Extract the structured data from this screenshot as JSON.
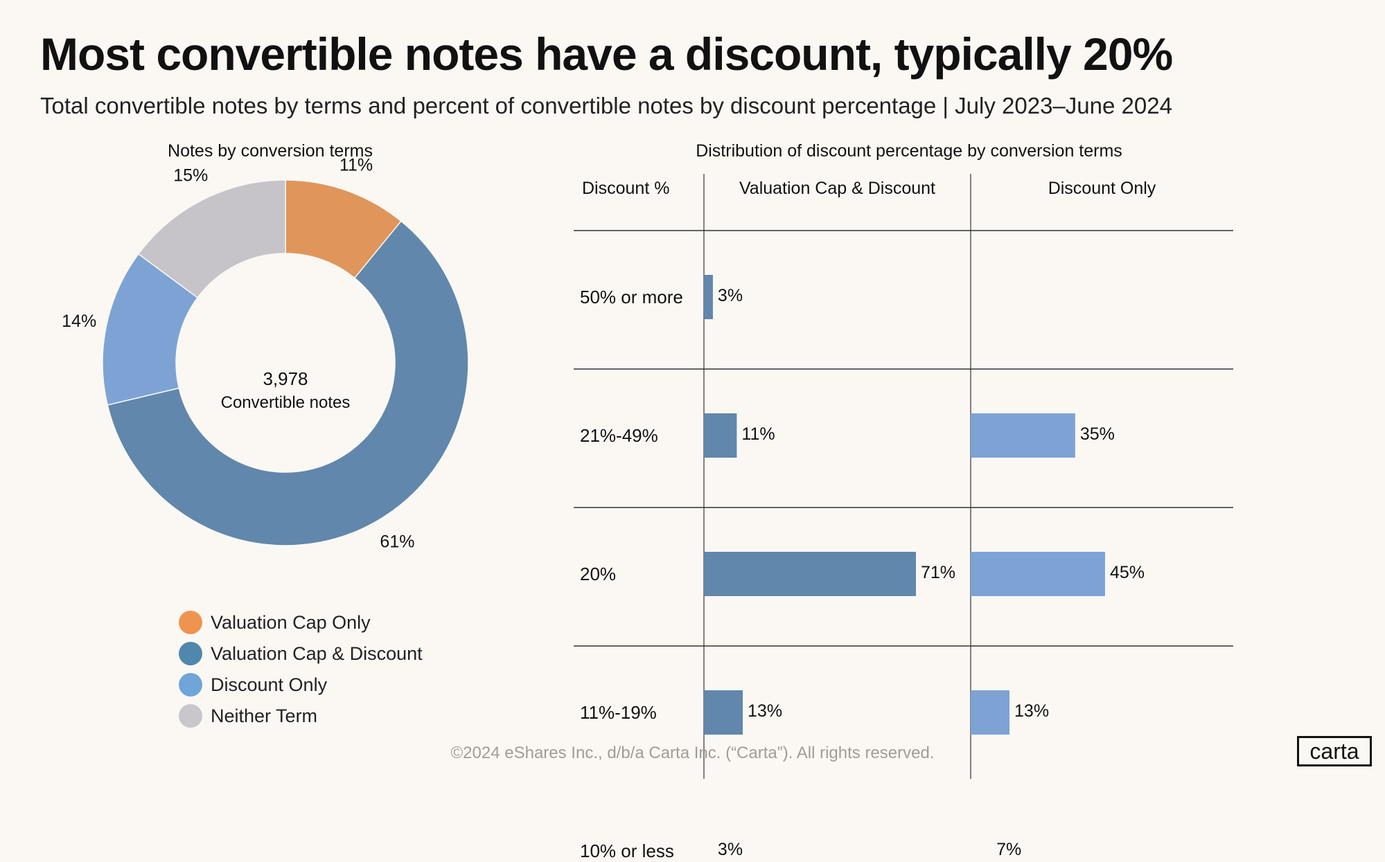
{
  "title": "Most convertible notes have a discount, typically 20%",
  "subtitle": "Total convertible notes by terms and percent of convertible notes by discount percentage  |  July 2023–June 2024",
  "footer": "©2024 eShares Inc., d/b/a Carta Inc. (“Carta”). All rights reserved.",
  "logo": "carta",
  "chart_data": [
    {
      "type": "pie",
      "variant": "donut",
      "title": "Notes by conversion terms",
      "center_value": "3,978",
      "center_label": "Convertible notes",
      "slices": [
        {
          "name": "Valuation Cap Only",
          "value": 11,
          "label": "11%",
          "color": "#E0955A",
          "legend_color": "#EE9450"
        },
        {
          "name": "Valuation Cap & Discount",
          "value": 61,
          "label": "61%",
          "color": "#6187AC",
          "legend_color": "#4F87AD"
        },
        {
          "name": "Discount Only",
          "value": 14,
          "label": "14%",
          "color": "#7DA3D4",
          "legend_color": "#6FA5D8"
        },
        {
          "name": "Neither Term",
          "value": 15,
          "label": "15%",
          "color": "#C6C4C9",
          "legend_color": "#C9C6CC"
        }
      ],
      "legend": "bottom"
    },
    {
      "type": "bar",
      "orientation": "horizontal",
      "title": "Distribution of discount percentage by conversion terms",
      "row_header": "Discount %",
      "categories": [
        "50% or more",
        "21%-49%",
        "20%",
        "11%-19%",
        "10% or less"
      ],
      "series": [
        {
          "name": "Valuation Cap & Discount",
          "color": "#6187AC",
          "values": [
            3,
            11,
            71,
            13,
            3
          ],
          "labels": [
            "3%",
            "11%",
            "71%",
            "13%",
            "3%"
          ]
        },
        {
          "name": "Discount Only",
          "color": "#7DA3D4",
          "values": [
            null,
            35,
            45,
            13,
            7
          ],
          "labels": [
            "",
            "35%",
            "45%",
            "13%",
            "7%"
          ]
        }
      ]
    }
  ]
}
